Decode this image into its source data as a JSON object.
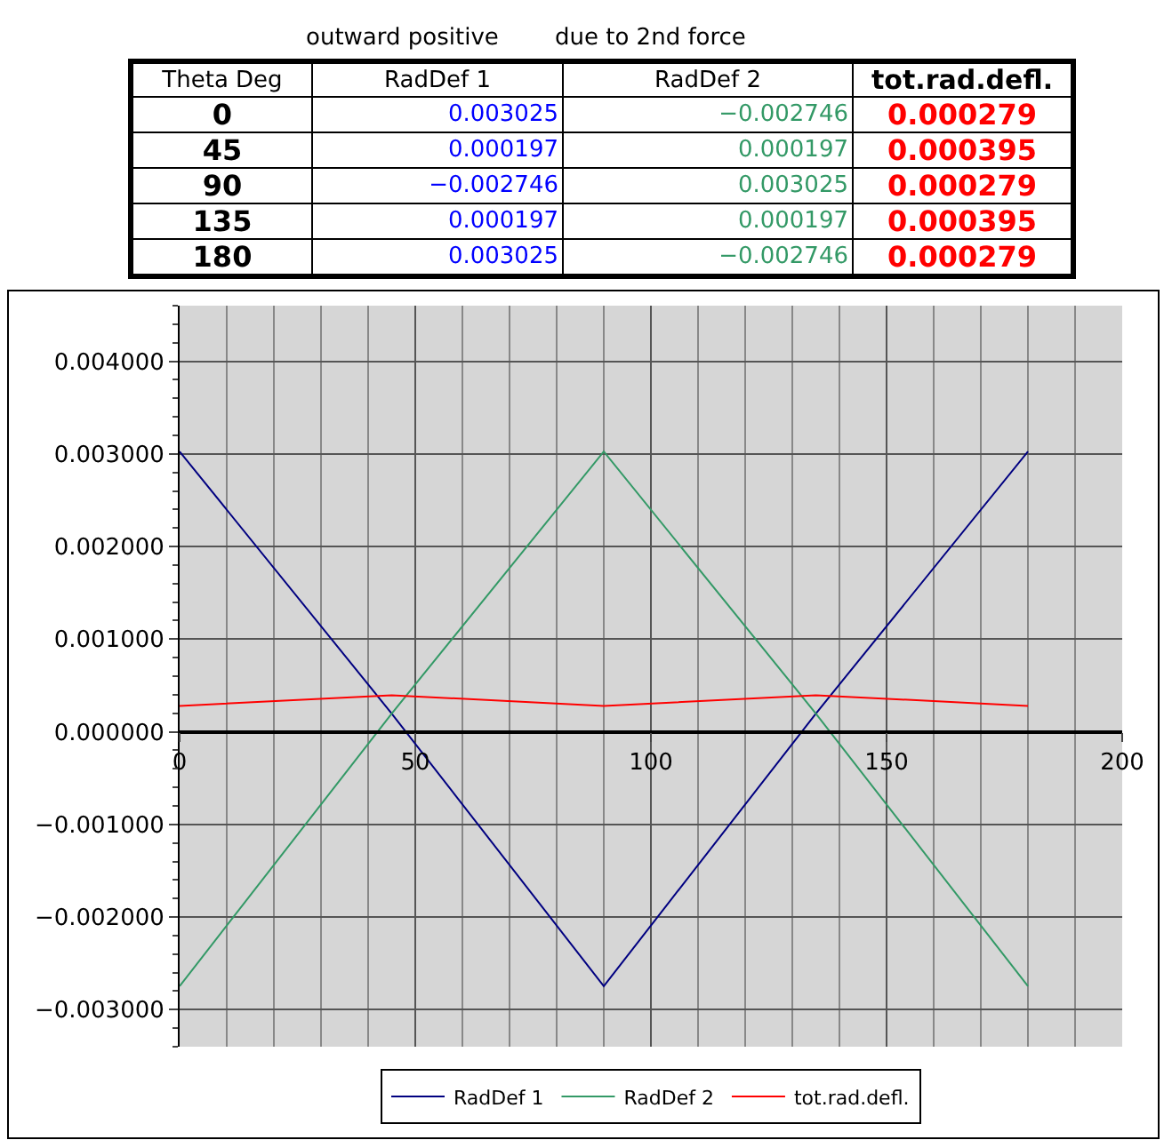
{
  "chart_data": [
    {
      "type": "heatmap",
      "ylabel": "Theta Deg",
      "annotations": [
        "outward positive",
        "due to 2nd force"
      ],
      "categories": [
        "RadDef 1",
        "RadDef 2",
        "tot.rad.defl."
      ],
      "y_categories": [
        "0",
        "45",
        "90",
        "135",
        "180"
      ],
      "cells": [
        [
          0.003025,
          -0.002746,
          0.000279
        ],
        [
          0.000197,
          0.000197,
          0.000395
        ],
        [
          -0.002746,
          0.003025,
          0.000279
        ],
        [
          0.000197,
          0.000197,
          0.000395
        ],
        [
          0.003025,
          -0.002746,
          0.000279
        ]
      ],
      "data_labels": true
    },
    {
      "type": "line",
      "x": [
        0,
        45,
        90,
        135,
        180
      ],
      "series": [
        {
          "name": "RadDef 1",
          "color": "#000080",
          "values": [
            0.003025,
            0.000197,
            -0.002746,
            0.000197,
            0.003025
          ]
        },
        {
          "name": "RadDef 2",
          "color": "#339966",
          "values": [
            -0.002746,
            0.000197,
            0.003025,
            0.000197,
            -0.002746
          ]
        },
        {
          "name": "tot.rad.defl.",
          "color": "#ff0000",
          "values": [
            0.000279,
            0.000395,
            0.000279,
            0.000395,
            0.000279
          ]
        }
      ],
      "xlim": [
        0,
        200
      ],
      "xticks": [
        0,
        50,
        100,
        150,
        200
      ],
      "ylim": [
        -0.0034,
        0.0046
      ],
      "yticks": [
        {
          "value": -0.003,
          "label": "−0.003000"
        },
        {
          "value": -0.002,
          "label": "−0.002000"
        },
        {
          "value": -0.001,
          "label": "−0.001000"
        },
        {
          "value": 0,
          "label": "0.000000"
        },
        {
          "value": 0.001,
          "label": "0.001000"
        },
        {
          "value": 0.002,
          "label": "0.002000"
        },
        {
          "value": 0.003,
          "label": "0.003000"
        },
        {
          "value": 0.004,
          "label": "0.004000"
        }
      ],
      "grid": true,
      "legend": "bottom",
      "marker": "none",
      "line_style": "solid"
    }
  ]
}
